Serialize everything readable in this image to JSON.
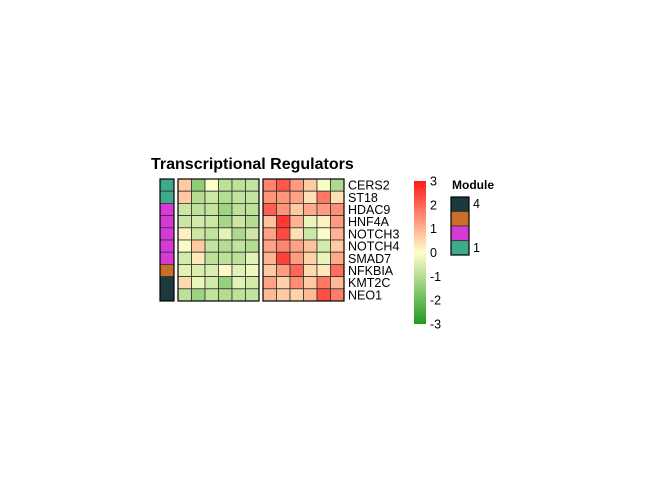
{
  "chart_data": {
    "type": "heatmap",
    "title": "Transcriptional Regulators",
    "rows": [
      "CERS2",
      "ST18",
      "HDAC9",
      "HNF4A",
      "NOTCH3",
      "NOTCH4",
      "SMAD7",
      "NFKBIA",
      "KMT2C",
      "NEO1"
    ],
    "values": [
      [
        0.7,
        -1.5,
        0.0,
        -0.9,
        -0.9,
        -0.8,
        1.6,
        2.2,
        1.3,
        0.7,
        -0.1,
        -1.1
      ],
      [
        0.7,
        -1.0,
        -0.7,
        -1.0,
        -0.8,
        -0.8,
        1.4,
        1.4,
        1.2,
        0.4,
        1.8,
        0.4
      ],
      [
        -0.7,
        -0.9,
        -0.8,
        -1.3,
        -0.9,
        -0.9,
        2.1,
        1.4,
        0.7,
        1.1,
        1.3,
        1.5
      ],
      [
        -0.7,
        -0.6,
        -0.7,
        -1.2,
        -0.7,
        -1.0,
        0.8,
        2.6,
        1.0,
        -0.3,
        0.2,
        1.3
      ],
      [
        0.2,
        -0.7,
        -0.8,
        -0.4,
        -1.1,
        -0.7,
        1.2,
        2.4,
        0.4,
        -0.7,
        -0.1,
        1.0
      ],
      [
        -0.1,
        0.7,
        -0.8,
        -1.0,
        -0.8,
        -1.0,
        1.2,
        1.6,
        1.2,
        0.8,
        -0.6,
        0.7
      ],
      [
        -0.6,
        0.3,
        -0.9,
        -0.9,
        -0.9,
        -0.4,
        1.0,
        2.5,
        1.3,
        0.6,
        -0.3,
        1.1
      ],
      [
        -0.4,
        -0.5,
        -0.5,
        0.1,
        -0.4,
        -0.2,
        0.7,
        1.3,
        2.0,
        0.5,
        0.3,
        1.9
      ],
      [
        0.5,
        -0.3,
        -0.6,
        -1.4,
        -0.4,
        -0.6,
        1.2,
        0.6,
        1.5,
        0.7,
        1.8,
        0.9
      ],
      [
        -0.9,
        -1.3,
        -0.8,
        -1.0,
        -0.9,
        -0.8,
        0.9,
        0.7,
        0.6,
        0.9,
        2.3,
        1.7
      ]
    ],
    "column_split": [
      6,
      6
    ],
    "row_modules": [
      "teal",
      "teal",
      "magenta",
      "magenta",
      "magenta",
      "magenta",
      "magenta",
      "orange",
      "dark",
      "dark"
    ],
    "color_scale": {
      "min": -3,
      "mid": 0,
      "max": 3,
      "colors": [
        "#1e9a1e",
        "#ffffcc",
        "#ff1a1a"
      ],
      "ticks": [
        "3",
        "2",
        "1",
        "0",
        "-1",
        "-2",
        "-3"
      ]
    },
    "module_legend": {
      "title": "Module",
      "colors": {
        "dark": "#1c3a3e",
        "orange": "#c8702a",
        "magenta": "#d63ad6",
        "teal": "#3faa8a"
      },
      "order": [
        "dark",
        "orange",
        "magenta",
        "teal"
      ],
      "labels": [
        "4",
        "1"
      ]
    }
  }
}
